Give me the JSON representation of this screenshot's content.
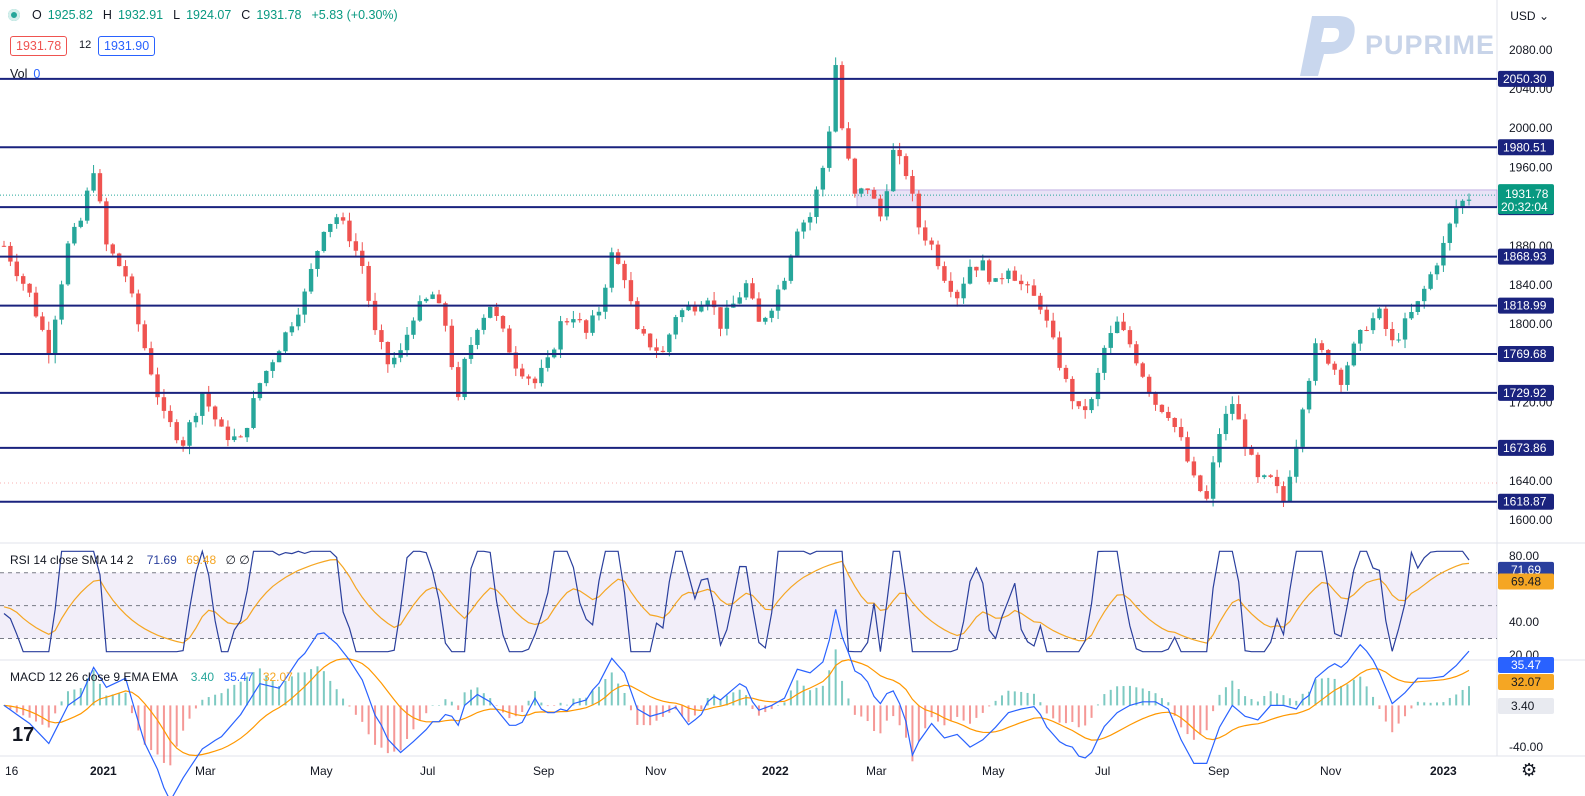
{
  "header": {
    "ohlc": [
      {
        "key": "O",
        "value": "1925.82"
      },
      {
        "key": "H",
        "value": "1932.91"
      },
      {
        "key": "L",
        "value": "1924.07"
      },
      {
        "key": "C",
        "value": "1931.78"
      }
    ],
    "change": "+5.83 (+0.30%)",
    "bid": "1931.78",
    "spread": "12",
    "ask": "1931.90",
    "vol_label": "Vol",
    "vol_value": "0",
    "currency": "USD",
    "brand": "PUPRIME"
  },
  "chart_data": {
    "type": "candlestick",
    "x_ticks": [
      "16",
      "2021",
      "Mar",
      "May",
      "Jul",
      "Sep",
      "Nov",
      "2022",
      "Mar",
      "May",
      "Jul",
      "Sep",
      "Nov",
      "2023"
    ],
    "y_ticks": [
      2080,
      2040,
      2000,
      1960,
      1880,
      1840,
      1800,
      1720,
      1640,
      1600
    ],
    "ylim": [
      1588,
      2090
    ],
    "levels": [
      {
        "value": 2050.3,
        "label": "2050.30"
      },
      {
        "value": 1980.51,
        "label": "1980.51"
      },
      {
        "value": 1919.48,
        "label": "1919.48"
      },
      {
        "value": 1868.93,
        "label": "1868.93"
      },
      {
        "value": 1818.99,
        "label": "1818.99"
      },
      {
        "value": 1769.68,
        "label": "1769.68"
      },
      {
        "value": 1729.92,
        "label": "1729.92"
      },
      {
        "value": 1673.86,
        "label": "1673.86"
      },
      {
        "value": 1618.87,
        "label": "1618.87"
      }
    ],
    "last_price": {
      "value": 1931.78,
      "label": "1931.78",
      "countdown": "20:32:04"
    },
    "zone": [
      1919.48,
      1937
    ],
    "price_path": [
      [
        0,
        1880
      ],
      [
        4,
        1830
      ],
      [
        7,
        1775
      ],
      [
        10,
        1880
      ],
      [
        12,
        1905
      ],
      [
        14,
        1960
      ],
      [
        16,
        1880
      ],
      [
        19,
        1850
      ],
      [
        21,
        1800
      ],
      [
        25,
        1705
      ],
      [
        28,
        1680
      ],
      [
        31,
        1730
      ],
      [
        34,
        1690
      ],
      [
        37,
        1680
      ],
      [
        40,
        1740
      ],
      [
        44,
        1790
      ],
      [
        47,
        1830
      ],
      [
        50,
        1900
      ],
      [
        52,
        1910
      ],
      [
        54,
        1890
      ],
      [
        56,
        1860
      ],
      [
        58,
        1790
      ],
      [
        60,
        1760
      ],
      [
        62,
        1770
      ],
      [
        64,
        1810
      ],
      [
        67,
        1830
      ],
      [
        69,
        1800
      ],
      [
        71,
        1720
      ],
      [
        72,
        1760
      ],
      [
        74,
        1800
      ],
      [
        76,
        1820
      ],
      [
        78,
        1790
      ],
      [
        80,
        1760
      ],
      [
        83,
        1740
      ],
      [
        85,
        1760
      ],
      [
        87,
        1800
      ],
      [
        89,
        1810
      ],
      [
        91,
        1790
      ],
      [
        93,
        1815
      ],
      [
        95,
        1870
      ],
      [
        97,
        1850
      ],
      [
        99,
        1790
      ],
      [
        101,
        1780
      ],
      [
        103,
        1770
      ],
      [
        105,
        1810
      ],
      [
        108,
        1820
      ],
      [
        110,
        1830
      ],
      [
        112,
        1800
      ],
      [
        114,
        1820
      ],
      [
        116,
        1840
      ],
      [
        118,
        1800
      ],
      [
        120,
        1820
      ],
      [
        122,
        1850
      ],
      [
        124,
        1900
      ],
      [
        126,
        1910
      ],
      [
        128,
        1960
      ],
      [
        129,
        2000
      ],
      [
        130,
        2065
      ],
      [
        131,
        2000
      ],
      [
        133,
        1930
      ],
      [
        135,
        1940
      ],
      [
        137,
        1910
      ],
      [
        139,
        1975
      ],
      [
        141,
        1955
      ],
      [
        143,
        1900
      ],
      [
        145,
        1880
      ],
      [
        147,
        1850
      ],
      [
        149,
        1830
      ],
      [
        151,
        1860
      ],
      [
        153,
        1860
      ],
      [
        155,
        1840
      ],
      [
        157,
        1860
      ],
      [
        159,
        1840
      ],
      [
        162,
        1820
      ],
      [
        164,
        1780
      ],
      [
        166,
        1740
      ],
      [
        168,
        1710
      ],
      [
        170,
        1720
      ],
      [
        172,
        1775
      ],
      [
        174,
        1800
      ],
      [
        176,
        1780
      ],
      [
        178,
        1750
      ],
      [
        180,
        1720
      ],
      [
        182,
        1710
      ],
      [
        184,
        1680
      ],
      [
        186,
        1640
      ],
      [
        188,
        1620
      ],
      [
        190,
        1690
      ],
      [
        192,
        1720
      ],
      [
        194,
        1680
      ],
      [
        196,
        1640
      ],
      [
        198,
        1640
      ],
      [
        200,
        1620
      ],
      [
        202,
        1680
      ],
      [
        203,
        1720
      ],
      [
        205,
        1775
      ],
      [
        207,
        1765
      ],
      [
        209,
        1745
      ],
      [
        211,
        1775
      ],
      [
        213,
        1800
      ],
      [
        215,
        1810
      ],
      [
        217,
        1780
      ],
      [
        219,
        1800
      ],
      [
        221,
        1820
      ],
      [
        223,
        1850
      ],
      [
        225,
        1880
      ],
      [
        227,
        1920
      ],
      [
        229,
        1930
      ]
    ],
    "rsi": {
      "label": "RSI 14 close SMA 14 2",
      "rsi_value": "71.69",
      "sma_value": "69.48",
      "extra": "∅ ∅",
      "ylim": [
        20,
        85
      ],
      "ticks": [
        80.0,
        40.0,
        20.0
      ],
      "bands": [
        70,
        50,
        30
      ],
      "colors": {
        "rsi": "#2a3f9d",
        "sma": "#f5a623"
      }
    },
    "macd": {
      "label": "MACD 12 26 close 9 EMA EMA",
      "hist_value": "3.40",
      "macd_value": "35.47",
      "signal_value": "32.07",
      "ylim": [
        -45,
        40
      ],
      "ticks": [
        -40.0
      ],
      "colors": {
        "macd": "#2962ff",
        "signal": "#ff9800",
        "hist_pos": "#26a69a",
        "hist_neg": "#ef5350"
      }
    },
    "colors": {
      "up": "#26a69a",
      "down": "#ef5350",
      "level": "#1a237e",
      "zone": "#d7ccf0"
    }
  }
}
